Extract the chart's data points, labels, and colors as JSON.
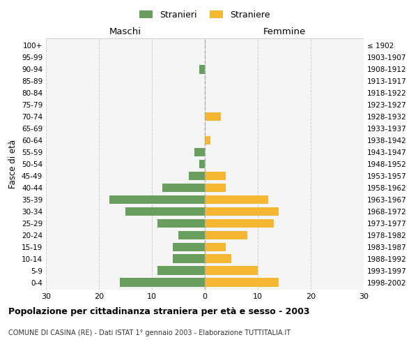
{
  "age_groups": [
    "0-4",
    "5-9",
    "10-14",
    "15-19",
    "20-24",
    "25-29",
    "30-34",
    "35-39",
    "40-44",
    "45-49",
    "50-54",
    "55-59",
    "60-64",
    "65-69",
    "70-74",
    "75-79",
    "80-84",
    "85-89",
    "90-94",
    "95-99",
    "100+"
  ],
  "birth_years": [
    "1998-2002",
    "1993-1997",
    "1988-1992",
    "1983-1987",
    "1978-1982",
    "1973-1977",
    "1968-1972",
    "1963-1967",
    "1958-1962",
    "1953-1957",
    "1948-1952",
    "1943-1947",
    "1938-1942",
    "1933-1937",
    "1928-1932",
    "1923-1927",
    "1918-1922",
    "1913-1917",
    "1908-1912",
    "1903-1907",
    "≤ 1902"
  ],
  "males": [
    16,
    9,
    6,
    6,
    5,
    9,
    15,
    18,
    8,
    3,
    1,
    2,
    0,
    0,
    0,
    0,
    0,
    0,
    1,
    0,
    0
  ],
  "females": [
    14,
    10,
    5,
    4,
    8,
    13,
    14,
    12,
    4,
    4,
    0,
    0,
    1,
    0,
    3,
    0,
    0,
    0,
    0,
    0,
    0
  ],
  "male_color": "#6a9e5e",
  "female_color": "#f5b731",
  "xlim": 30,
  "title": "Popolazione per cittadinanza straniera per età e sesso - 2003",
  "subtitle": "COMUNE DI CASINA (RE) - Dati ISTAT 1° gennaio 2003 - Elaborazione TUTTITALIA.IT",
  "ylabel_left": "Fasce di età",
  "legend_male": "Stranieri",
  "legend_female": "Straniere",
  "maschi_label": "Maschi",
  "femmine_label": "Femmine",
  "bg_color": "#f5f5f5",
  "grid_color": "#cccccc",
  "bar_height": 0.75
}
